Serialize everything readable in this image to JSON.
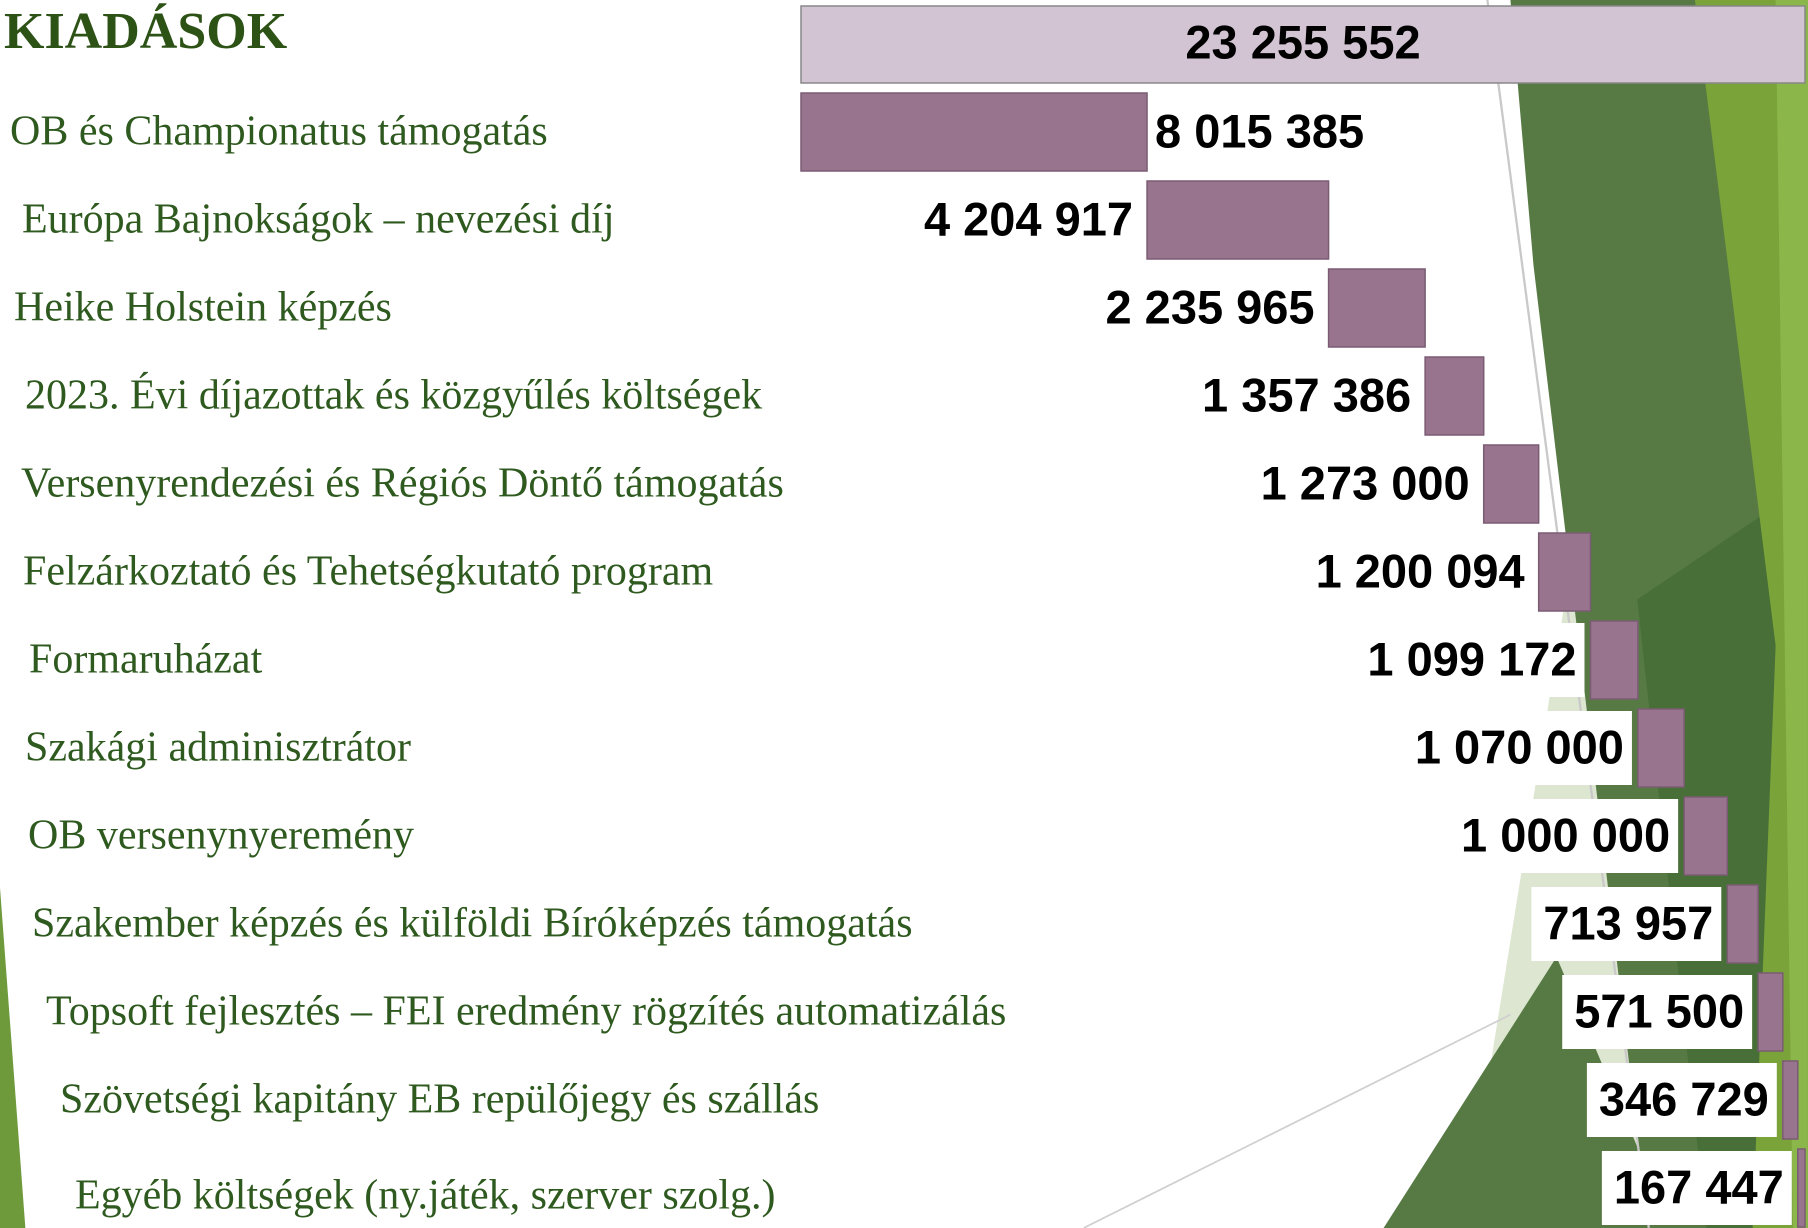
{
  "chart_data": {
    "type": "waterfall",
    "title": "KIADÁSOK",
    "total": {
      "value": 23255552,
      "label": "23 255 552"
    },
    "categories": [
      "OB és Championatus  támogatás",
      "Európa Bajnokságok – nevezési díj",
      "Heike Holstein képzés",
      "2023. Évi díjazottak és közgyűlés költségek",
      "Versenyrendezési és Régiós Döntő támogatás",
      "Felzárkoztató és Tehetségkutató program",
      "Formaruházat",
      "Szakági adminisztrátor",
      "OB versenynyeremény",
      "Szakember képzés és külföldi Bíróképzés támogatás",
      "Topsoft fejlesztés – FEI eredmény rögzítés automatizálás",
      "Szövetségi kapitány EB repülőjegy és szállás",
      "Egyéb költségek (ny.játék, szerver szolg.)"
    ],
    "values": [
      8015385,
      4204917,
      2235965,
      1357386,
      1273000,
      1200094,
      1099172,
      1070000,
      1000000,
      713957,
      571500,
      346729,
      167447
    ],
    "value_labels": [
      "8 015 385",
      "4 204 917",
      "2 235 965",
      "1 357 386",
      "1 273 000",
      "1 200 094",
      "1 099 172",
      "1 070 000",
      "1 000 000",
      "713 957",
      "571 500",
      "346 729",
      "167 447"
    ],
    "total_color": "#d3c4d4",
    "color": "#98748f"
  }
}
